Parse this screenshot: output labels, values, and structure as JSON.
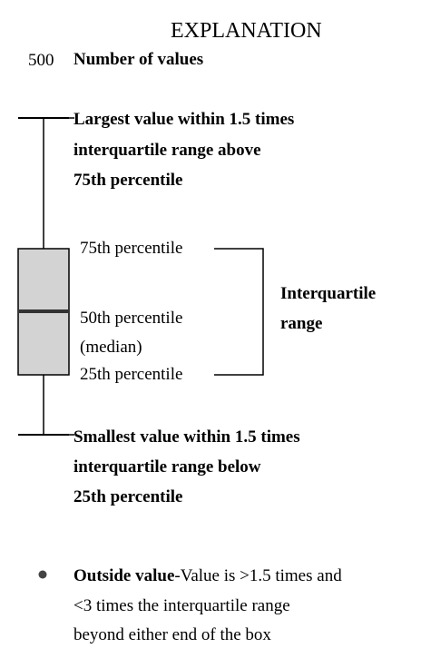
{
  "title": "EXPLANATION",
  "count": {
    "number": "500",
    "label": "Number of values"
  },
  "upper_whisker": {
    "line1": "Largest value within 1.5 times",
    "line2": "interquartile range above",
    "line3": "75th percentile"
  },
  "box": {
    "p75": "75th percentile",
    "p50": "50th percentile",
    "median": "(median)",
    "p25": "25th percentile",
    "fill_color": "#d3d3d3",
    "median_color": "#333333"
  },
  "iqr": {
    "line1": "Interquartile",
    "line2": "range"
  },
  "lower_whisker": {
    "line1": "Smallest value within 1.5 times",
    "line2": "interquartile range below",
    "line3": "25th percentile"
  },
  "outside": {
    "bold_label": "Outside value",
    "line1_rest": "-Value is >1.5 times and",
    "line2": "<3 times the interquartile range",
    "line3": "beyond either end of the box",
    "dot_color": "#444444"
  }
}
